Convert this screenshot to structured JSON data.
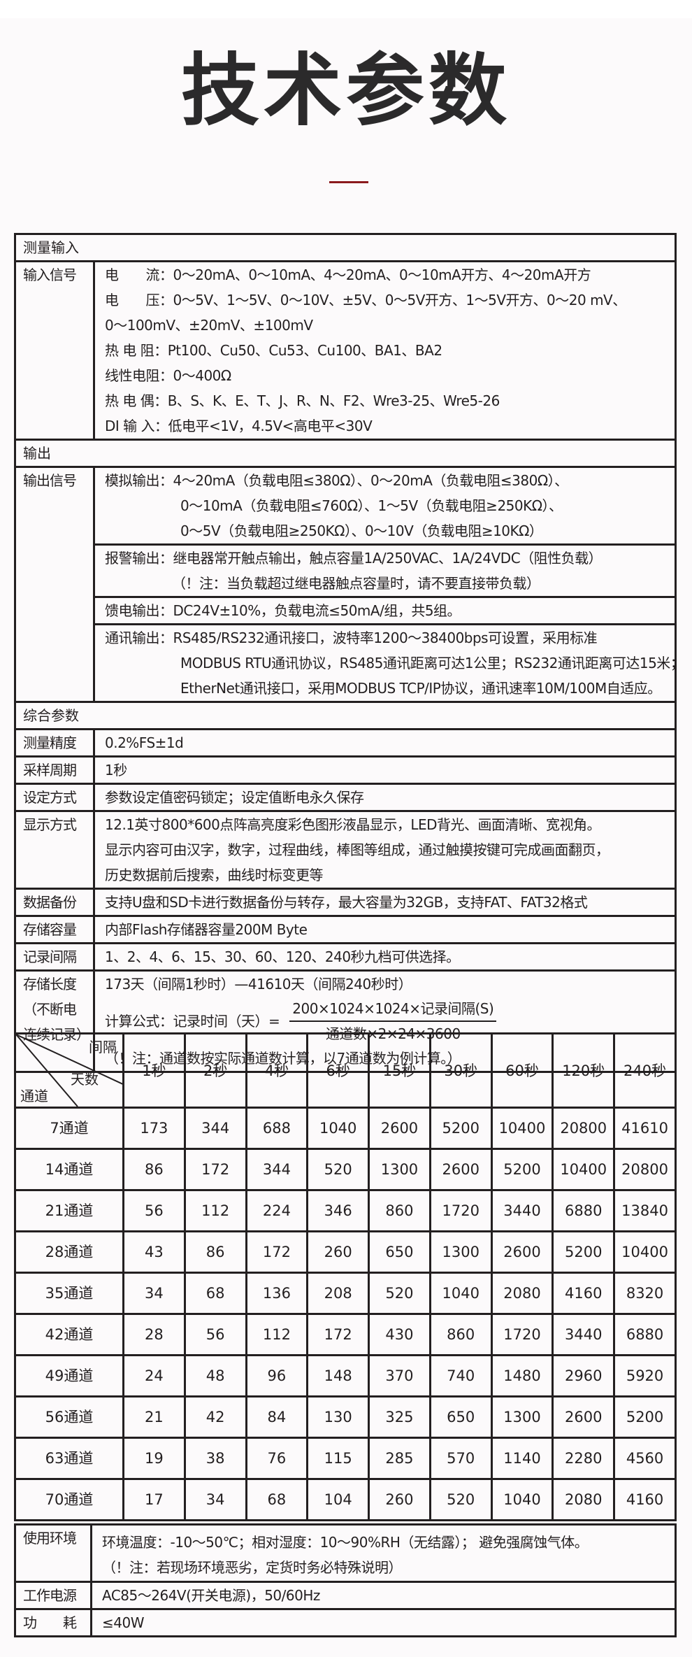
{
  "title": "技术参数",
  "accent_color": "#8b1a1d",
  "measure_input": {
    "section": "测量输入",
    "label": "输入信号",
    "lines": [
      "电　　流：0～20mA、0～10mA、4～20mA、0～10mA开方、4～20mA开方",
      "电　　压：0～5V、1～5V、0～10V、±5V、0～5V开方、1～5V开方、0～20 mV、",
      "0～100mV、±20mV、±100mV",
      "热 电 阻：Pt100、Cu50、Cu53、Cu100、BA1、BA2",
      "线性电阻：0～400Ω",
      "热 电 偶：B、S、K、E、T、J、R、N、F2、Wre3-25、Wre5-26",
      "DI 输 入：低电平<1V，4.5V<高电平<30V"
    ]
  },
  "output": {
    "section": "输出",
    "label": "输出信号",
    "analog": [
      "模拟输出：4～20mA（负载电阻≤380Ω）、0～20mA（负载电阻≤380Ω）、",
      "0～10mA（负载电阻≤760Ω）、1～5V（负载电阻≥250KΩ）、",
      "0～5V（负载电阻≥250KΩ）、0～10V（负载电阻≥10KΩ）"
    ],
    "alarm": [
      "报警输出：继电器常开触点输出，触点容量1A/250VAC、1A/24VDC（阻性负载）",
      "（！注：当负载超过继电器触点容量时，请不要直接带负载）"
    ],
    "feed": "馈电输出：DC24V±10%，负载电流≤50mA/组，共5组。",
    "comm": [
      "通讯输出：RS485/RS232通讯接口，波特率1200～38400bps可设置，采用标准",
      "MODBUS RTU通讯协议，RS485通讯距离可达1公里；RS232通讯距离可达15米；",
      "EtherNet通讯接口，采用MODBUS TCP/IP协议，通讯速率10M/100M自适应。"
    ]
  },
  "general": {
    "section": "综合参数",
    "rows": [
      {
        "label": "测量精度",
        "value": "0.2%FS±1d"
      },
      {
        "label": "采样周期",
        "value": "1秒"
      },
      {
        "label": "设定方式",
        "value": "参数设定值密码锁定；设定值断电永久保存"
      },
      {
        "label": "显示方式",
        "lines": [
          "12.1英寸800*600点阵高亮度彩色图形液晶显示，LED背光、画面清晰、宽视角。",
          "显示内容可由汉字，数字，过程曲线，棒图等组成，通过触摸按键可完成画面翻页，",
          "历史数据前后搜索，曲线时标变更等"
        ]
      },
      {
        "label": "数据备份",
        "value": "支持U盘和SD卡进行数据备份与转存，最大容量为32GB，支持FAT、FAT32格式"
      },
      {
        "label": "存储容量",
        "value": "内部Flash存储器容量200M Byte"
      },
      {
        "label": "记录间隔",
        "value": "1、2、4、6、15、30、60、120、240秒九档可供选择。"
      }
    ],
    "storage": {
      "label_lines": [
        "存储长度",
        "（不断电",
        "连续记录）"
      ],
      "range": "173天（间隔1秒时）—41610天（间隔240秒时）",
      "formula_label": "计算公式：记录时间（天）=",
      "numerator": "200×1024×1024×记录间隔(S)",
      "denominator": "通道数×2×24×3600",
      "note": "（！注：通道数按实际通道数计算，以7通道数为例计算。）"
    }
  },
  "storage_table": {
    "corner": {
      "interval": "间隔",
      "days": "天数",
      "channels": "通道"
    },
    "columns": [
      "1秒",
      "2秒",
      "4秒",
      "6秒",
      "15秒",
      "30秒",
      "60秒",
      "120秒",
      "240秒"
    ],
    "rows": [
      {
        "channel": "7通道",
        "values": [
          "173",
          "344",
          "688",
          "1040",
          "2600",
          "5200",
          "10400",
          "20800",
          "41610"
        ]
      },
      {
        "channel": "14通道",
        "values": [
          "86",
          "172",
          "344",
          "520",
          "1300",
          "2600",
          "5200",
          "10400",
          "20800"
        ]
      },
      {
        "channel": "21通道",
        "values": [
          "56",
          "112",
          "224",
          "346",
          "860",
          "1720",
          "3440",
          "6880",
          "13840"
        ]
      },
      {
        "channel": "28通道",
        "values": [
          "43",
          "86",
          "172",
          "260",
          "650",
          "1300",
          "2600",
          "5200",
          "10400"
        ]
      },
      {
        "channel": "35通道",
        "values": [
          "34",
          "68",
          "136",
          "208",
          "520",
          "1040",
          "2080",
          "4160",
          "8320"
        ]
      },
      {
        "channel": "42通道",
        "values": [
          "28",
          "56",
          "112",
          "172",
          "430",
          "860",
          "1720",
          "3440",
          "6880"
        ]
      },
      {
        "channel": "49通道",
        "values": [
          "24",
          "48",
          "96",
          "148",
          "370",
          "740",
          "1480",
          "2960",
          "5920"
        ]
      },
      {
        "channel": "56通道",
        "values": [
          "21",
          "42",
          "84",
          "130",
          "325",
          "650",
          "1300",
          "2600",
          "5200"
        ]
      },
      {
        "channel": "63通道",
        "values": [
          "19",
          "38",
          "76",
          "115",
          "285",
          "570",
          "1140",
          "2280",
          "4560"
        ]
      },
      {
        "channel": "70通道",
        "values": [
          "17",
          "34",
          "68",
          "104",
          "260",
          "520",
          "1040",
          "2080",
          "4160"
        ]
      }
    ]
  },
  "environment": {
    "label": "使用环境",
    "lines": [
      "环境温度：-10～50℃；相对湿度：10～90%RH（无结露）；  避免强腐蚀气体。",
      "（！注：若现场环境恶劣，定货时务必特殊说明）"
    ],
    "power_label": "工作电源",
    "power": "AC85～264V(开关电源)，50/60Hz",
    "consumption_label": "功　　耗",
    "consumption": "≤40W"
  }
}
